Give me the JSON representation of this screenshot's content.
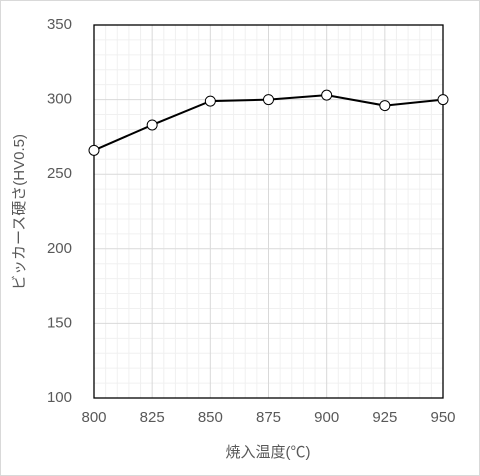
{
  "chart_data": {
    "type": "line",
    "x": [
      800,
      825,
      850,
      875,
      900,
      925,
      950
    ],
    "series": [
      {
        "name": "ビッカース硬さ",
        "color": "#000000",
        "values": [
          266,
          283,
          299,
          300,
          303,
          296,
          300
        ]
      }
    ],
    "xlabel": "焼入温度(℃)",
    "ylabel": "ビッカース硬さ(HV0.5)",
    "xlim": [
      800,
      950
    ],
    "xticks": [
      800,
      825,
      850,
      875,
      900,
      925,
      950
    ],
    "ylim": [
      100,
      350
    ],
    "yticks": [
      100,
      150,
      200,
      250,
      300,
      350
    ],
    "grid": true,
    "minor_grid": true
  }
}
